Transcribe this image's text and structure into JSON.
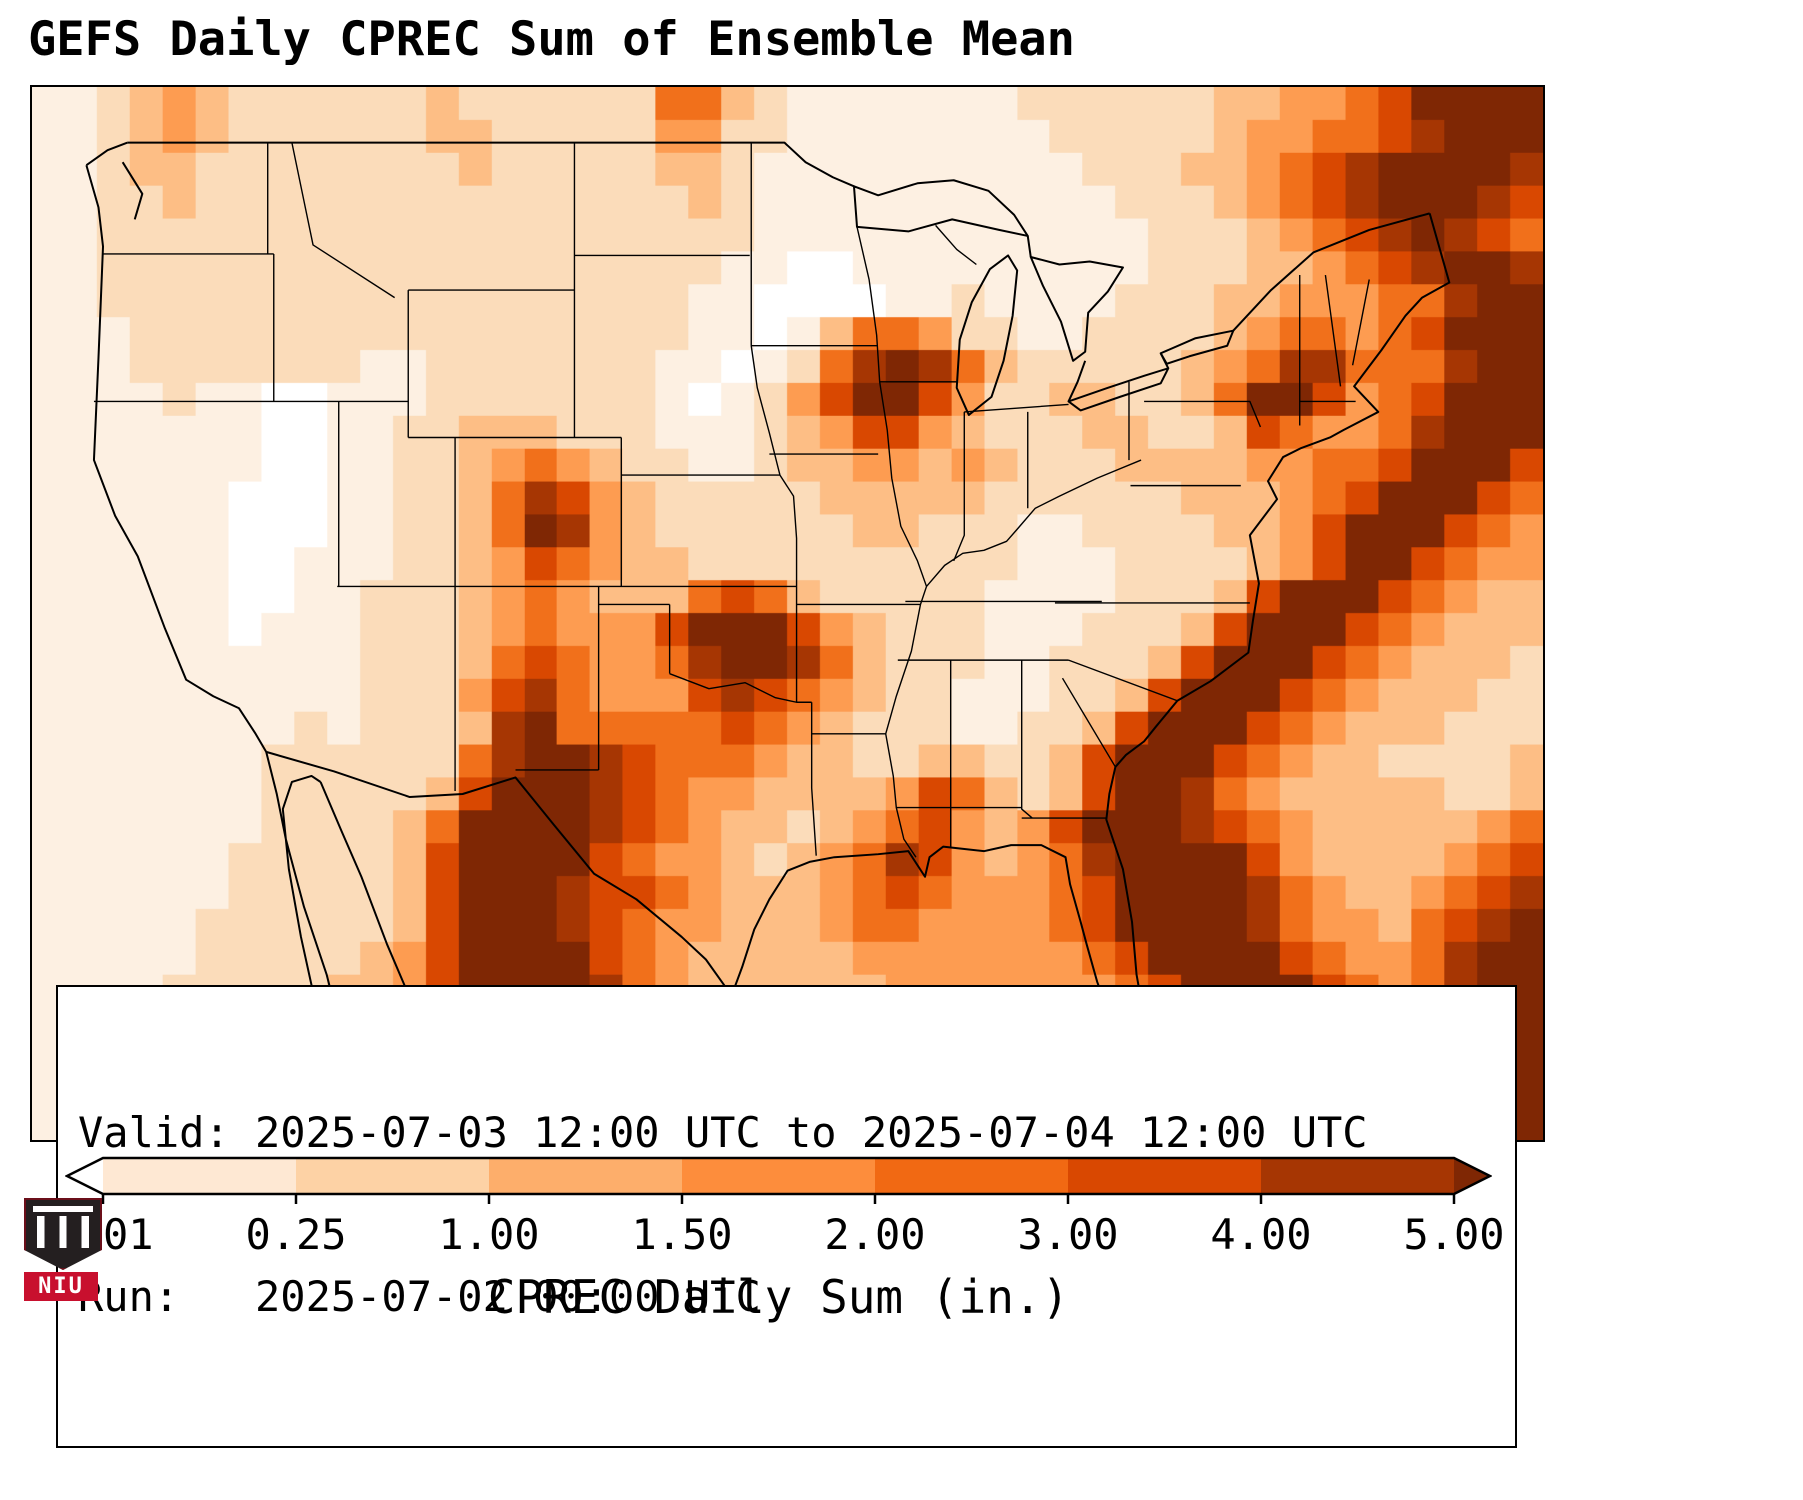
{
  "title": "GEFS Daily CPREC Sum of Ensemble Mean",
  "info_box": {
    "valid_line": "Valid: 2025-07-03 12:00 UTC to 2025-07-04 12:00 UTC",
    "run_line": "Run:   2025-07-02 00:00 UTC"
  },
  "colorbar": {
    "label": "CPREC Daily Sum (in.)",
    "ticks": [
      "0.01",
      "0.25",
      "1.00",
      "1.50",
      "2.00",
      "3.00",
      "4.00",
      "5.00"
    ],
    "under_color": "#ffffff",
    "over_color": "#7f2704",
    "segment_colors": [
      "#fee8d3",
      "#fdd2a5",
      "#fdae6b",
      "#fd8d3c",
      "#f16913",
      "#d94801",
      "#a63603"
    ]
  },
  "logo": {
    "text": "NIU"
  },
  "chart_data": {
    "type": "heatmap",
    "title": "GEFS Daily CPREC Sum of Ensemble Mean",
    "colorbar_label": "CPREC Daily Sum (in.)",
    "units": "inches",
    "levels_in": [
      0.01,
      0.25,
      1.0,
      1.5,
      2.0,
      3.0,
      4.0,
      5.0
    ],
    "level_colors": [
      "#ffffff",
      "#fdf0e2",
      "#fbdcba",
      "#fdbe85",
      "#fd9c51",
      "#f1701b",
      "#d94801",
      "#a63603",
      "#7f2704"
    ],
    "legend_position": "bottom horizontal colorbar with under/over arrow extensions",
    "grid_encoding": "Each character is a daily precip bin index for one map cell, rows top-to-bottom, 46 cells per row (spaces cosmetic): 0 <0.01, 1 0.01-0.25, 2 0.25-1.00, 3 1.00-1.50, 4 1.50-2.00, 5 2.00-3.00, 6 3.00-4.00, 7 4.00-5.00, 8 >5.00 inches",
    "approx_extent": {
      "lon": [
        -127,
        -63
      ],
      "lat": [
        22,
        50.5
      ]
    },
    "notable_maxima": [
      "Texas Panhandle / western Oklahoma >5 in",
      "Northern Mexico / Big Bend >5 in",
      "Wisconsin >5 in",
      "Upstate New York and northern New England >5 in",
      "Georgia-Florida and offshore Atlantic band >5 in",
      "Southwest Colorado ~4-5 in",
      "Louisiana coast ~3-4 in"
    ],
    "grid": [
      "112343 222222 322222 255321 111111 222222 334456 8888",
      "112343 222222 332222 244221 111111 122222 344556 7888",
      "112332 222222 232222 233211 111111 112223 345678 8887",
      "112232 222222 222222 223211 111111 111222 345678 8876",
      "112222 222222 222222 222211 111111 111122 234567 8765",
      "112222 222222 222222 222110 011111 111122 233456 7887",
      "112222 222222 222222 221100 001121 111222 334445 5788",
      "111222 222222 222222 221101 355422 112222 345545 6888",
      "111222 222211 222222 211012 578753 222223 457755 5788",
      "111121 100111 222222 210124 688642 233223 588645 6888",
      "111111 100112 233322 211123 466432 223322 365445 7888",
      "111111 100112 234543 221123 344343 222333 344556 8886",
      "111111 000112 235764 322222 333332 222223 334568 8865",
      "111111 000112 235874 322222 233222 112222 334688 8654",
      "111111 001112 234654 332222 222222 111222 234688 6544",
      "111111 001122 234543 335653 222221 111222 368886 5433",
      "111111 011122 234544 468886 432221 112223 688865 4333",
      "111111 111122 235654 457887 532221 122236 888654 3332",
      "111111 111122 246754 446765 432211 122368 886543 3322",
      "111111 112122 237855 555654 322211 223688 865433 3222",
      "111111 122222 257887 655543 322332 236888 654332 2223",
      "111111 122222 368887 654433 334653 236887 543333 3223",
      "111111 122223 588887 654332 345643 468887 654333 3345",
      "111111 222223 688886 544323 457643 457888 864333 3456",
      "111111 222223 688876 654333 456544 456888 875433 4567",
      "111112 222223 688876 544333 455444 456888 875443 5678",
      "111112 222234 688886 543333 344444 445688 886544 5788",
      "111122 222334 688887 543333 334444 444568 888654 5788",
      "111122 223345 788887 654333 333444 444456 888865 6788",
      "111222 233456 888888 654433 333344 444456 788655 6788",
      "112222 334567 888888 765443 333344 444556 788654 6788",
      "112223 345678 888888 765444 333334 445566 788754 6788"
    ]
  }
}
